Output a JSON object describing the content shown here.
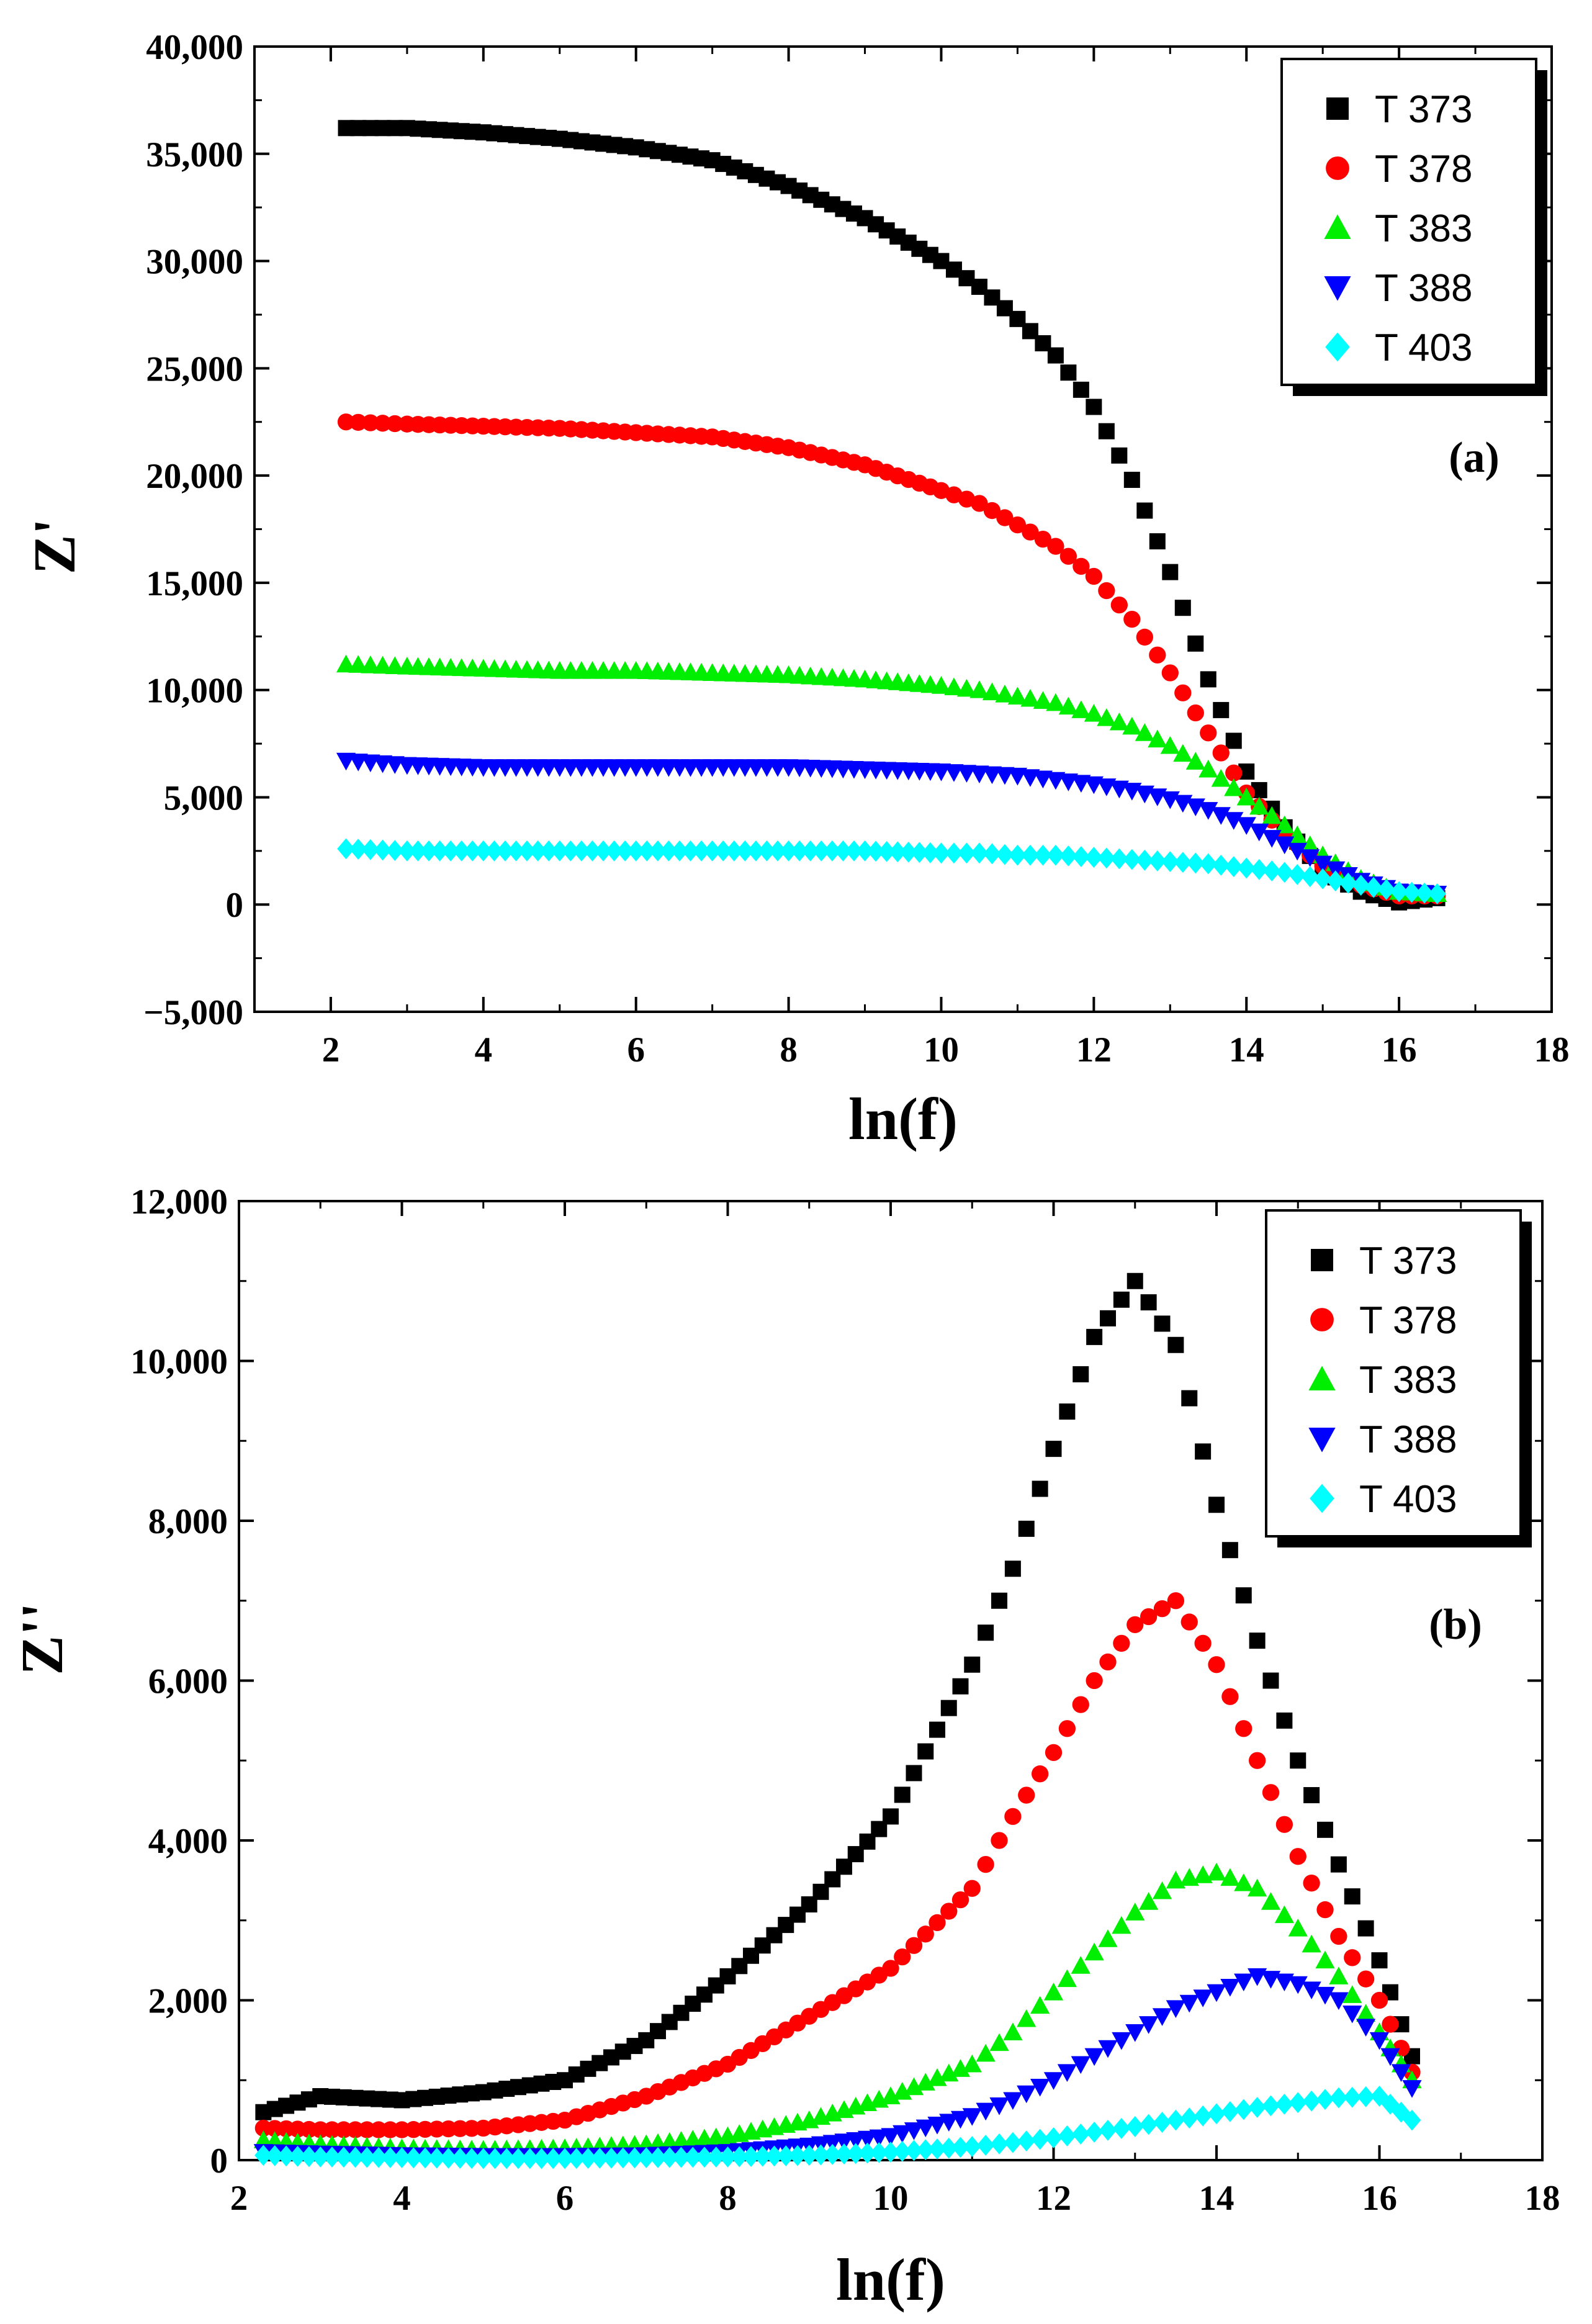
{
  "chart_data": [
    {
      "type": "scatter",
      "panel_label": "(a)",
      "xlabel": "ln(f)",
      "ylabel": "Z'",
      "xlim": [
        1,
        18
      ],
      "ylim": [
        -5000,
        40000
      ],
      "x_ticks": [
        2,
        4,
        6,
        8,
        10,
        12,
        14,
        16,
        18
      ],
      "x_tick_labels": [
        "2",
        "4",
        "6",
        "8",
        "10",
        "12",
        "14",
        "16",
        "18"
      ],
      "y_ticks": [
        -5000,
        0,
        5000,
        10000,
        15000,
        20000,
        25000,
        30000,
        35000,
        40000
      ],
      "y_tick_labels": [
        "−5,000",
        "0",
        "5,000",
        "10,000",
        "15,000",
        "20,000",
        "25,000",
        "30,000",
        "35,000",
        "40,000"
      ],
      "legend_position": "top-right",
      "series": [
        {
          "name": "T 373",
          "color": "#000000",
          "marker": "square",
          "x": [
            2.2,
            3,
            4,
            5,
            6,
            7,
            8,
            9,
            10,
            10.5,
            11,
            11.5,
            12,
            12.5,
            13,
            13.5,
            14,
            14.5,
            15,
            15.5,
            16,
            16.5
          ],
          "y": [
            36200,
            36200,
            36000,
            35700,
            35300,
            34700,
            33500,
            32000,
            30000,
            28800,
            27300,
            25600,
            23200,
            19800,
            15500,
            10500,
            6200,
            3600,
            1600,
            600,
            100,
            300
          ]
        },
        {
          "name": "T 378",
          "color": "#ff0000",
          "marker": "circle",
          "x": [
            2.2,
            3,
            4,
            5,
            6,
            7,
            8,
            9,
            10,
            10.5,
            11,
            11.5,
            12,
            12.5,
            13,
            13.5,
            14,
            14.5,
            15,
            15.5,
            16,
            16.5
          ],
          "y": [
            22500,
            22400,
            22300,
            22200,
            22000,
            21800,
            21300,
            20500,
            19300,
            18700,
            17700,
            16700,
            15300,
            13300,
            10800,
            8000,
            5200,
            3300,
            1800,
            900,
            400,
            400
          ]
        },
        {
          "name": "T 383",
          "color": "#00ee00",
          "marker": "triangle-up",
          "x": [
            2.2,
            3,
            4,
            5,
            6,
            7,
            8,
            9,
            10,
            10.5,
            11,
            11.5,
            12,
            12.5,
            13,
            13.5,
            14,
            14.5,
            15,
            15.5,
            16,
            16.5
          ],
          "y": [
            11200,
            11100,
            11000,
            10900,
            10900,
            10800,
            10700,
            10500,
            10200,
            10000,
            9700,
            9400,
            8900,
            8300,
            7400,
            6300,
            5000,
            3700,
            2300,
            1200,
            600,
            500
          ]
        },
        {
          "name": "T 388",
          "color": "#0000ff",
          "marker": "triangle-down",
          "x": [
            2.2,
            3,
            4,
            5,
            6,
            7,
            8,
            9,
            10,
            10.5,
            11,
            11.5,
            12,
            12.5,
            13,
            13.5,
            14,
            14.5,
            15,
            15.5,
            16,
            16.5
          ],
          "y": [
            6700,
            6500,
            6400,
            6400,
            6400,
            6400,
            6400,
            6300,
            6200,
            6100,
            6000,
            5800,
            5600,
            5300,
            4900,
            4400,
            3700,
            2800,
            1900,
            1100,
            600,
            500
          ]
        },
        {
          "name": "T 403",
          "color": "#00ffff",
          "marker": "diamond",
          "x": [
            2.2,
            3,
            4,
            5,
            6,
            7,
            8,
            9,
            10,
            10.5,
            11,
            11.5,
            12,
            12.5,
            13,
            13.5,
            14,
            14.5,
            15,
            15.5,
            16,
            16.5
          ],
          "y": [
            2600,
            2500,
            2500,
            2500,
            2500,
            2500,
            2500,
            2500,
            2400,
            2400,
            2300,
            2300,
            2200,
            2100,
            2000,
            1900,
            1700,
            1500,
            1200,
            900,
            600,
            500
          ]
        }
      ]
    },
    {
      "type": "scatter",
      "panel_label": "(b)",
      "xlabel": "ln(f)",
      "ylabel": "Z''",
      "xlim": [
        2,
        18
      ],
      "ylim": [
        0,
        12000
      ],
      "x_ticks": [
        2,
        4,
        6,
        8,
        10,
        12,
        14,
        16,
        18
      ],
      "x_tick_labels": [
        "2",
        "4",
        "6",
        "8",
        "10",
        "12",
        "14",
        "16",
        "18"
      ],
      "y_ticks": [
        0,
        2000,
        4000,
        6000,
        8000,
        10000,
        12000
      ],
      "y_tick_labels": [
        "0",
        "2,000",
        "4,000",
        "6,000",
        "8,000",
        "10,000",
        "12,000"
      ],
      "legend_position": "top-right",
      "series": [
        {
          "name": "T 373",
          "color": "#000000",
          "marker": "square",
          "x": [
            2.3,
            3,
            4,
            5,
            6,
            7,
            8,
            9,
            10,
            11,
            11.5,
            12,
            12.5,
            13,
            13.5,
            14,
            14.5,
            15,
            15.5,
            16,
            16.4
          ],
          "y": [
            600,
            800,
            750,
            850,
            1000,
            1500,
            2300,
            3200,
            4300,
            6200,
            7400,
            8900,
            10300,
            11000,
            10200,
            8200,
            6500,
            5000,
            3700,
            2500,
            1300
          ]
        },
        {
          "name": "T 378",
          "color": "#ff0000",
          "marker": "circle",
          "x": [
            2.3,
            3,
            4,
            5,
            6,
            7,
            8,
            9,
            10,
            11,
            11.5,
            12,
            12.5,
            13,
            13.5,
            14,
            14.5,
            15,
            15.5,
            16,
            16.4
          ],
          "y": [
            400,
            380,
            380,
            400,
            500,
            800,
            1200,
            1800,
            2400,
            3400,
            4300,
            5100,
            6000,
            6700,
            7000,
            6200,
            5000,
            3800,
            2800,
            2000,
            1100
          ]
        },
        {
          "name": "T 383",
          "color": "#00ee00",
          "marker": "triangle-up",
          "x": [
            2.3,
            3,
            4,
            5,
            6,
            7,
            8,
            9,
            10,
            11,
            11.5,
            12,
            12.5,
            13,
            13.5,
            14,
            14.5,
            15,
            15.5,
            16,
            16.4
          ],
          "y": [
            250,
            200,
            150,
            130,
            150,
            200,
            300,
            500,
            800,
            1200,
            1600,
            2100,
            2600,
            3100,
            3500,
            3600,
            3400,
            2900,
            2300,
            1600,
            1000
          ]
        },
        {
          "name": "T 388",
          "color": "#0000ff",
          "marker": "triangle-down",
          "x": [
            2.3,
            3,
            4,
            5,
            6,
            7,
            8,
            9,
            10,
            11,
            11.5,
            12,
            12.5,
            13,
            13.5,
            14,
            14.5,
            15,
            15.5,
            16,
            16.4
          ],
          "y": [
            100,
            80,
            60,
            50,
            50,
            60,
            100,
            180,
            300,
            550,
            750,
            1000,
            1300,
            1600,
            1900,
            2100,
            2300,
            2200,
            2000,
            1500,
            900
          ]
        },
        {
          "name": "T 403",
          "color": "#00ffff",
          "marker": "diamond",
          "x": [
            2.3,
            3,
            4,
            5,
            6,
            7,
            8,
            9,
            10,
            11,
            11.5,
            12,
            12.5,
            13,
            13.5,
            14,
            14.5,
            15,
            15.5,
            16,
            16.4
          ],
          "y": [
            60,
            40,
            30,
            20,
            20,
            30,
            40,
            60,
            100,
            170,
            220,
            280,
            350,
            420,
            500,
            580,
            660,
            720,
            780,
            800,
            500
          ]
        }
      ]
    }
  ]
}
